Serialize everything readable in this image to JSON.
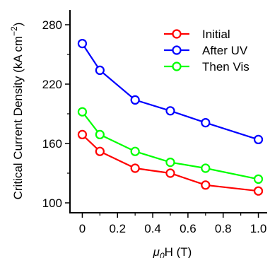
{
  "chart_data": {
    "type": "line",
    "x": [
      0,
      0.1,
      0.3,
      0.5,
      0.7,
      1.0
    ],
    "series": [
      {
        "name": "Initial",
        "color": "#ff0000",
        "values": [
          169,
          152,
          135,
          130,
          118,
          112
        ]
      },
      {
        "name": "After UV",
        "color": "#0000ff",
        "values": [
          261,
          234,
          204,
          193,
          181,
          164
        ]
      },
      {
        "name": "Then Vis",
        "color": "#00ff00",
        "values": [
          192,
          169,
          152,
          141,
          135,
          124
        ]
      }
    ],
    "xlabel": {
      "mu": "μ",
      "sub": "0",
      "rest": "H (T)"
    },
    "ylabel": {
      "main": "Critical Current Density (kA cm",
      "sup": "−2",
      "close": ")"
    },
    "xlim": [
      -0.07,
      1.05
    ],
    "ylim": [
      90,
      295
    ],
    "xticks": [
      "0",
      "0.2",
      "0.4",
      "0.6",
      "0.8",
      "1.0"
    ],
    "yticks": [
      "100",
      "160",
      "220",
      "280"
    ],
    "grid": false,
    "legend_position": "top-right",
    "marker": "open-circle"
  }
}
